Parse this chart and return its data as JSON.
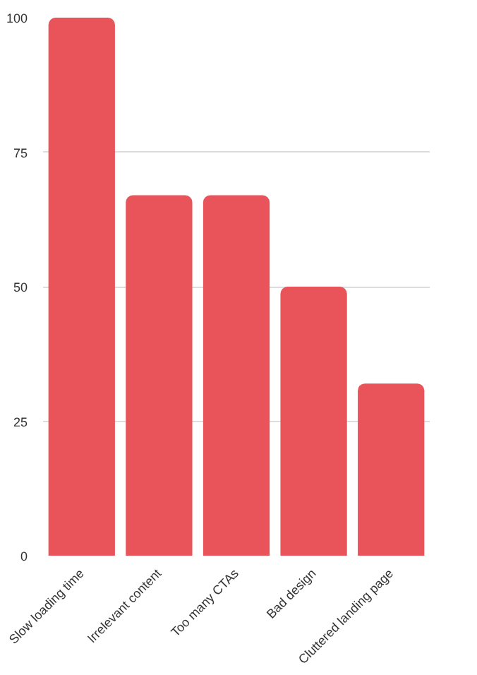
{
  "chart_data": {
    "type": "bar",
    "categories": [
      "Slow loading time",
      "Irrelevant content",
      "Too many CTAs",
      "Bad design",
      "Cluttered landing page"
    ],
    "values": [
      100,
      67,
      67,
      50,
      32
    ],
    "color": "#e8545a",
    "ylim": [
      0,
      100
    ],
    "yticks": [
      0,
      25,
      50,
      75,
      100
    ],
    "grid": "y"
  }
}
